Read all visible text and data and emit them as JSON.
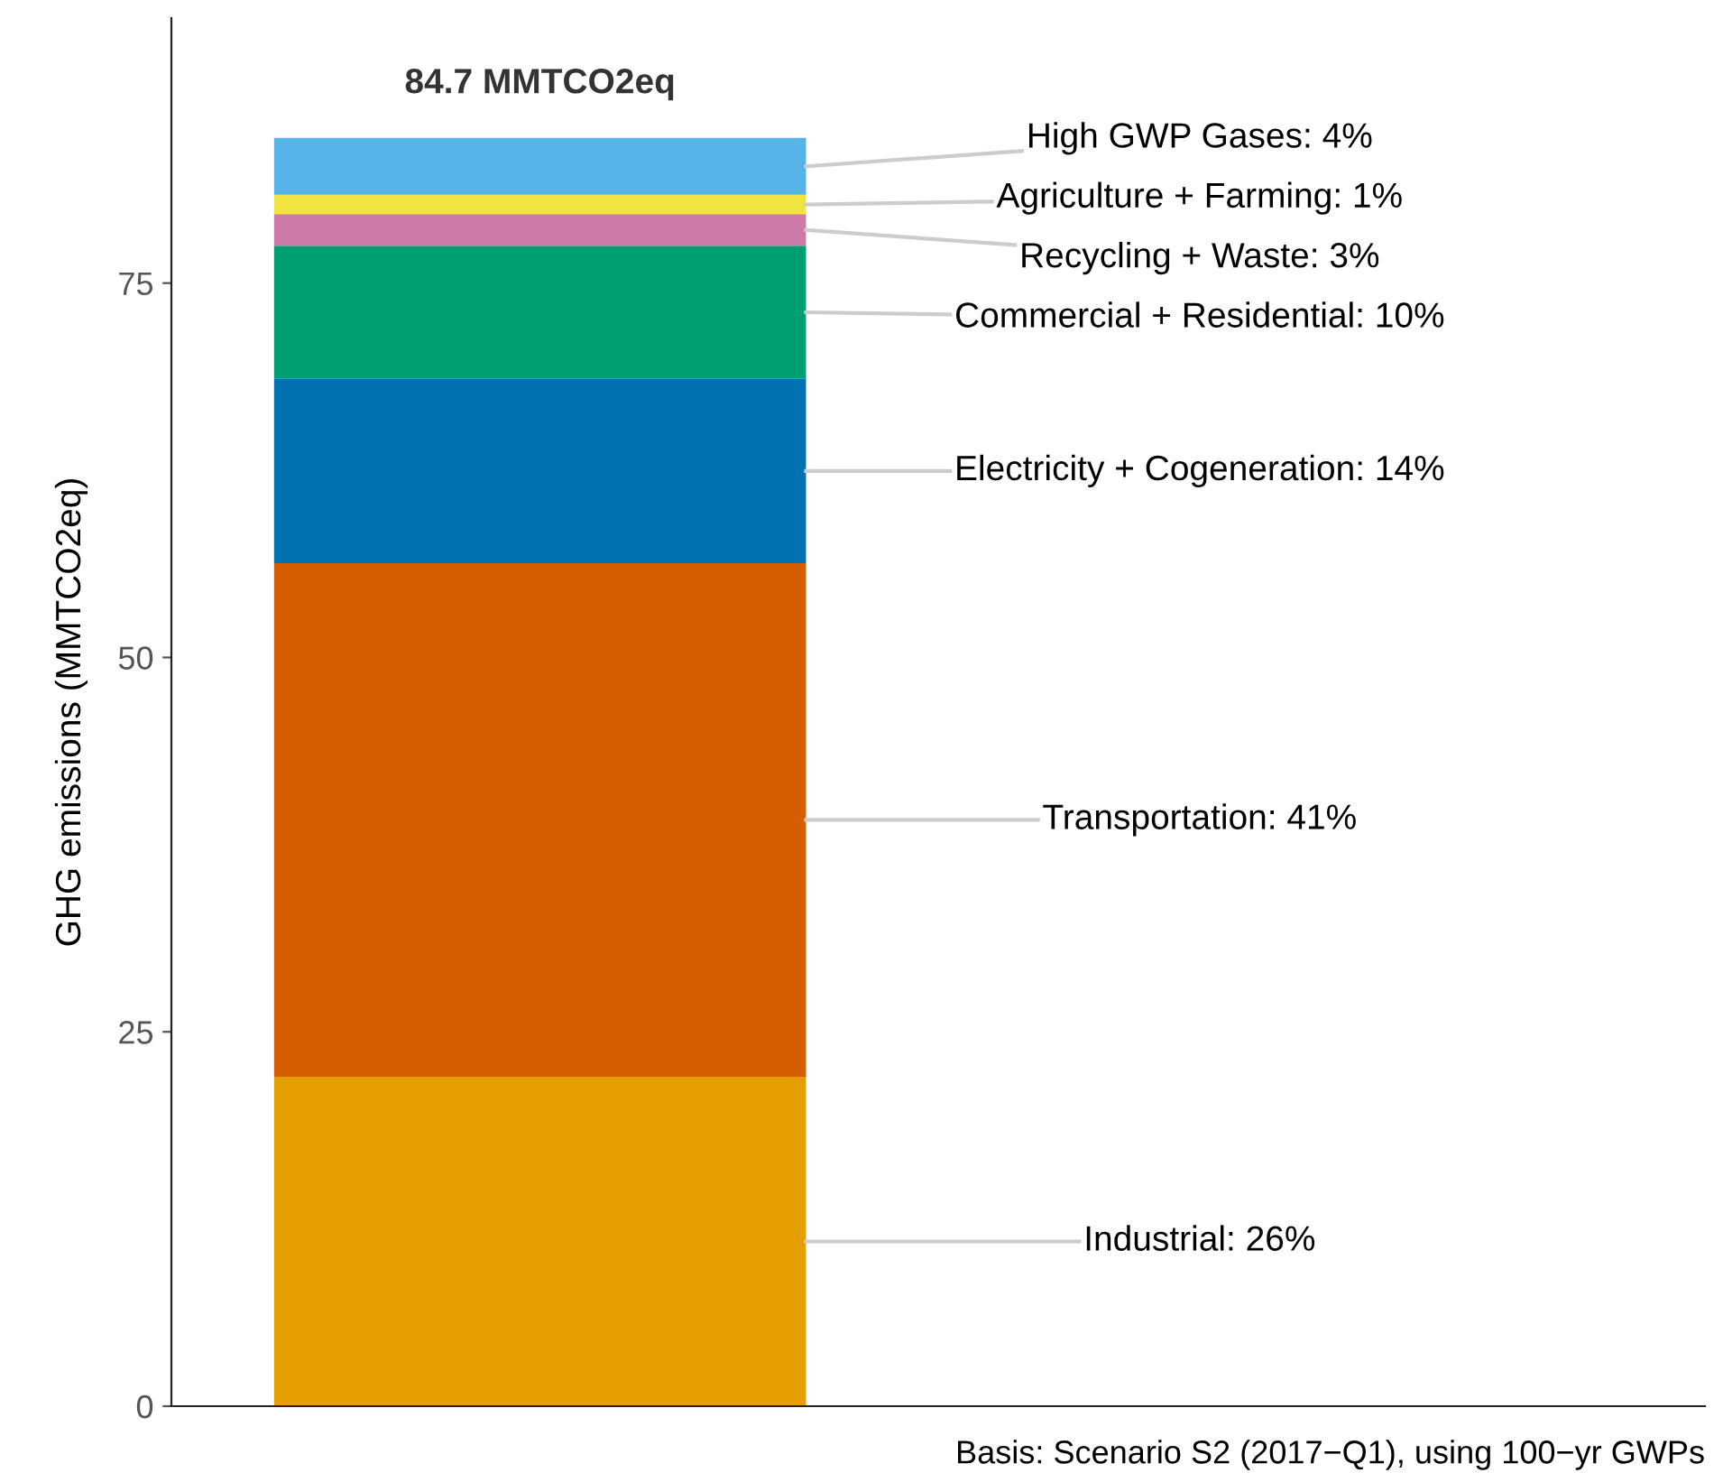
{
  "chart_data": {
    "type": "bar",
    "stacked": true,
    "categories": [
      null
    ],
    "series": [
      {
        "name": "Industrial: 26%",
        "color": "#e69f00",
        "values": [
          22.0
        ]
      },
      {
        "name": "Transportation: 41%",
        "color": "#d55e00",
        "values": [
          34.3
        ]
      },
      {
        "name": "Electricity + Cogeneration: 14%",
        "color": "#0072b2",
        "values": [
          12.3
        ]
      },
      {
        "name": "Commercial + Residential: 10%",
        "color": "#009e73",
        "values": [
          8.9
        ]
      },
      {
        "name": "Recycling + Waste: 3%",
        "color": "#cc79a7",
        "values": [
          2.1
        ]
      },
      {
        "name": "Agriculture + Farming: 1%",
        "color": "#f0e442",
        "values": [
          1.3
        ]
      },
      {
        "name": "High GWP Gases: 4%",
        "color": "#56b4e9",
        "values": [
          3.8
        ]
      }
    ],
    "totals": [
      "84.7 MMTCO2eq"
    ],
    "ylabel": "GHG emissions (MMTCO2eq)",
    "ylim": [
      0,
      92.7
    ],
    "yticks": [
      0,
      25,
      50,
      75
    ],
    "tick_labels": "y",
    "grid": false,
    "legend": false,
    "annotations": [
      "Basis: Scenario S2 (2017−Q1), using 100−yr GWPs"
    ]
  }
}
